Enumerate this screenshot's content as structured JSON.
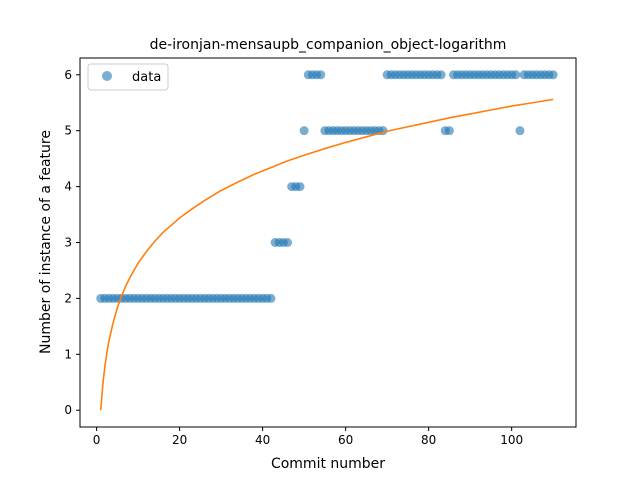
{
  "chart_data": {
    "type": "scatter",
    "title": "de-ironjan-mensaupb_companion_object-logarithm",
    "xlabel": "Commit number",
    "ylabel": "Number of instance of a feature",
    "xlim": [
      -4,
      115.5
    ],
    "ylim": [
      -0.3,
      6.3
    ],
    "xticks": [
      0,
      20,
      40,
      60,
      80,
      100
    ],
    "yticks": [
      0,
      1,
      2,
      3,
      4,
      5,
      6
    ],
    "grid": false,
    "legend": {
      "position": "top-left",
      "entries": [
        "data"
      ]
    },
    "colors": {
      "data": "#1f77b4",
      "fit": "#ff7f0e"
    },
    "series": [
      {
        "name": "data",
        "kind": "scatter",
        "x": [
          1,
          2,
          3,
          4,
          5,
          6,
          7,
          8,
          9,
          10,
          11,
          12,
          13,
          14,
          15,
          16,
          17,
          18,
          19,
          20,
          21,
          22,
          23,
          24,
          25,
          26,
          27,
          28,
          29,
          30,
          31,
          32,
          33,
          34,
          35,
          36,
          37,
          38,
          39,
          40,
          41,
          42,
          43,
          44,
          45,
          46,
          47,
          48,
          49,
          50,
          51,
          52,
          53,
          54,
          55,
          56,
          57,
          58,
          59,
          60,
          61,
          62,
          63,
          64,
          65,
          66,
          67,
          68,
          69,
          70,
          71,
          72,
          73,
          74,
          75,
          76,
          77,
          78,
          79,
          80,
          81,
          82,
          83,
          84,
          85,
          86,
          87,
          88,
          89,
          90,
          91,
          92,
          93,
          94,
          95,
          96,
          97,
          98,
          99,
          100,
          101,
          102,
          103,
          104,
          105,
          106,
          107,
          108,
          109,
          110
        ],
        "y": [
          2,
          2,
          2,
          2,
          2,
          2,
          2,
          2,
          2,
          2,
          2,
          2,
          2,
          2,
          2,
          2,
          2,
          2,
          2,
          2,
          2,
          2,
          2,
          2,
          2,
          2,
          2,
          2,
          2,
          2,
          2,
          2,
          2,
          2,
          2,
          2,
          2,
          2,
          2,
          2,
          2,
          2,
          3,
          3,
          3,
          3,
          4,
          4,
          4,
          5,
          6,
          6,
          6,
          6,
          5,
          5,
          5,
          5,
          5,
          5,
          5,
          5,
          5,
          5,
          5,
          5,
          5,
          5,
          5,
          6,
          6,
          6,
          6,
          6,
          6,
          6,
          6,
          6,
          6,
          6,
          6,
          6,
          6,
          5,
          5,
          6,
          6,
          6,
          6,
          6,
          6,
          6,
          6,
          6,
          6,
          6,
          6,
          6,
          6,
          6,
          6,
          5,
          6,
          6,
          6,
          6,
          6,
          6,
          6,
          6
        ]
      },
      {
        "kind": "line",
        "x": [
          1,
          1.5,
          2,
          2.5,
          3,
          4,
          5,
          6,
          7,
          8,
          10,
          12,
          14,
          16,
          18,
          20,
          23,
          26,
          30,
          34,
          38,
          42,
          46,
          50,
          55,
          60,
          65,
          70,
          75,
          80,
          85,
          90,
          95,
          100,
          105,
          110
        ],
        "y": [
          0,
          0.46,
          0.79,
          1.04,
          1.25,
          1.57,
          1.83,
          2.04,
          2.22,
          2.37,
          2.63,
          2.84,
          3.02,
          3.18,
          3.31,
          3.44,
          3.6,
          3.75,
          3.93,
          4.08,
          4.22,
          4.34,
          4.46,
          4.56,
          4.68,
          4.79,
          4.89,
          4.99,
          5.07,
          5.15,
          5.23,
          5.3,
          5.37,
          5.44,
          5.5,
          5.56
        ]
      }
    ]
  }
}
